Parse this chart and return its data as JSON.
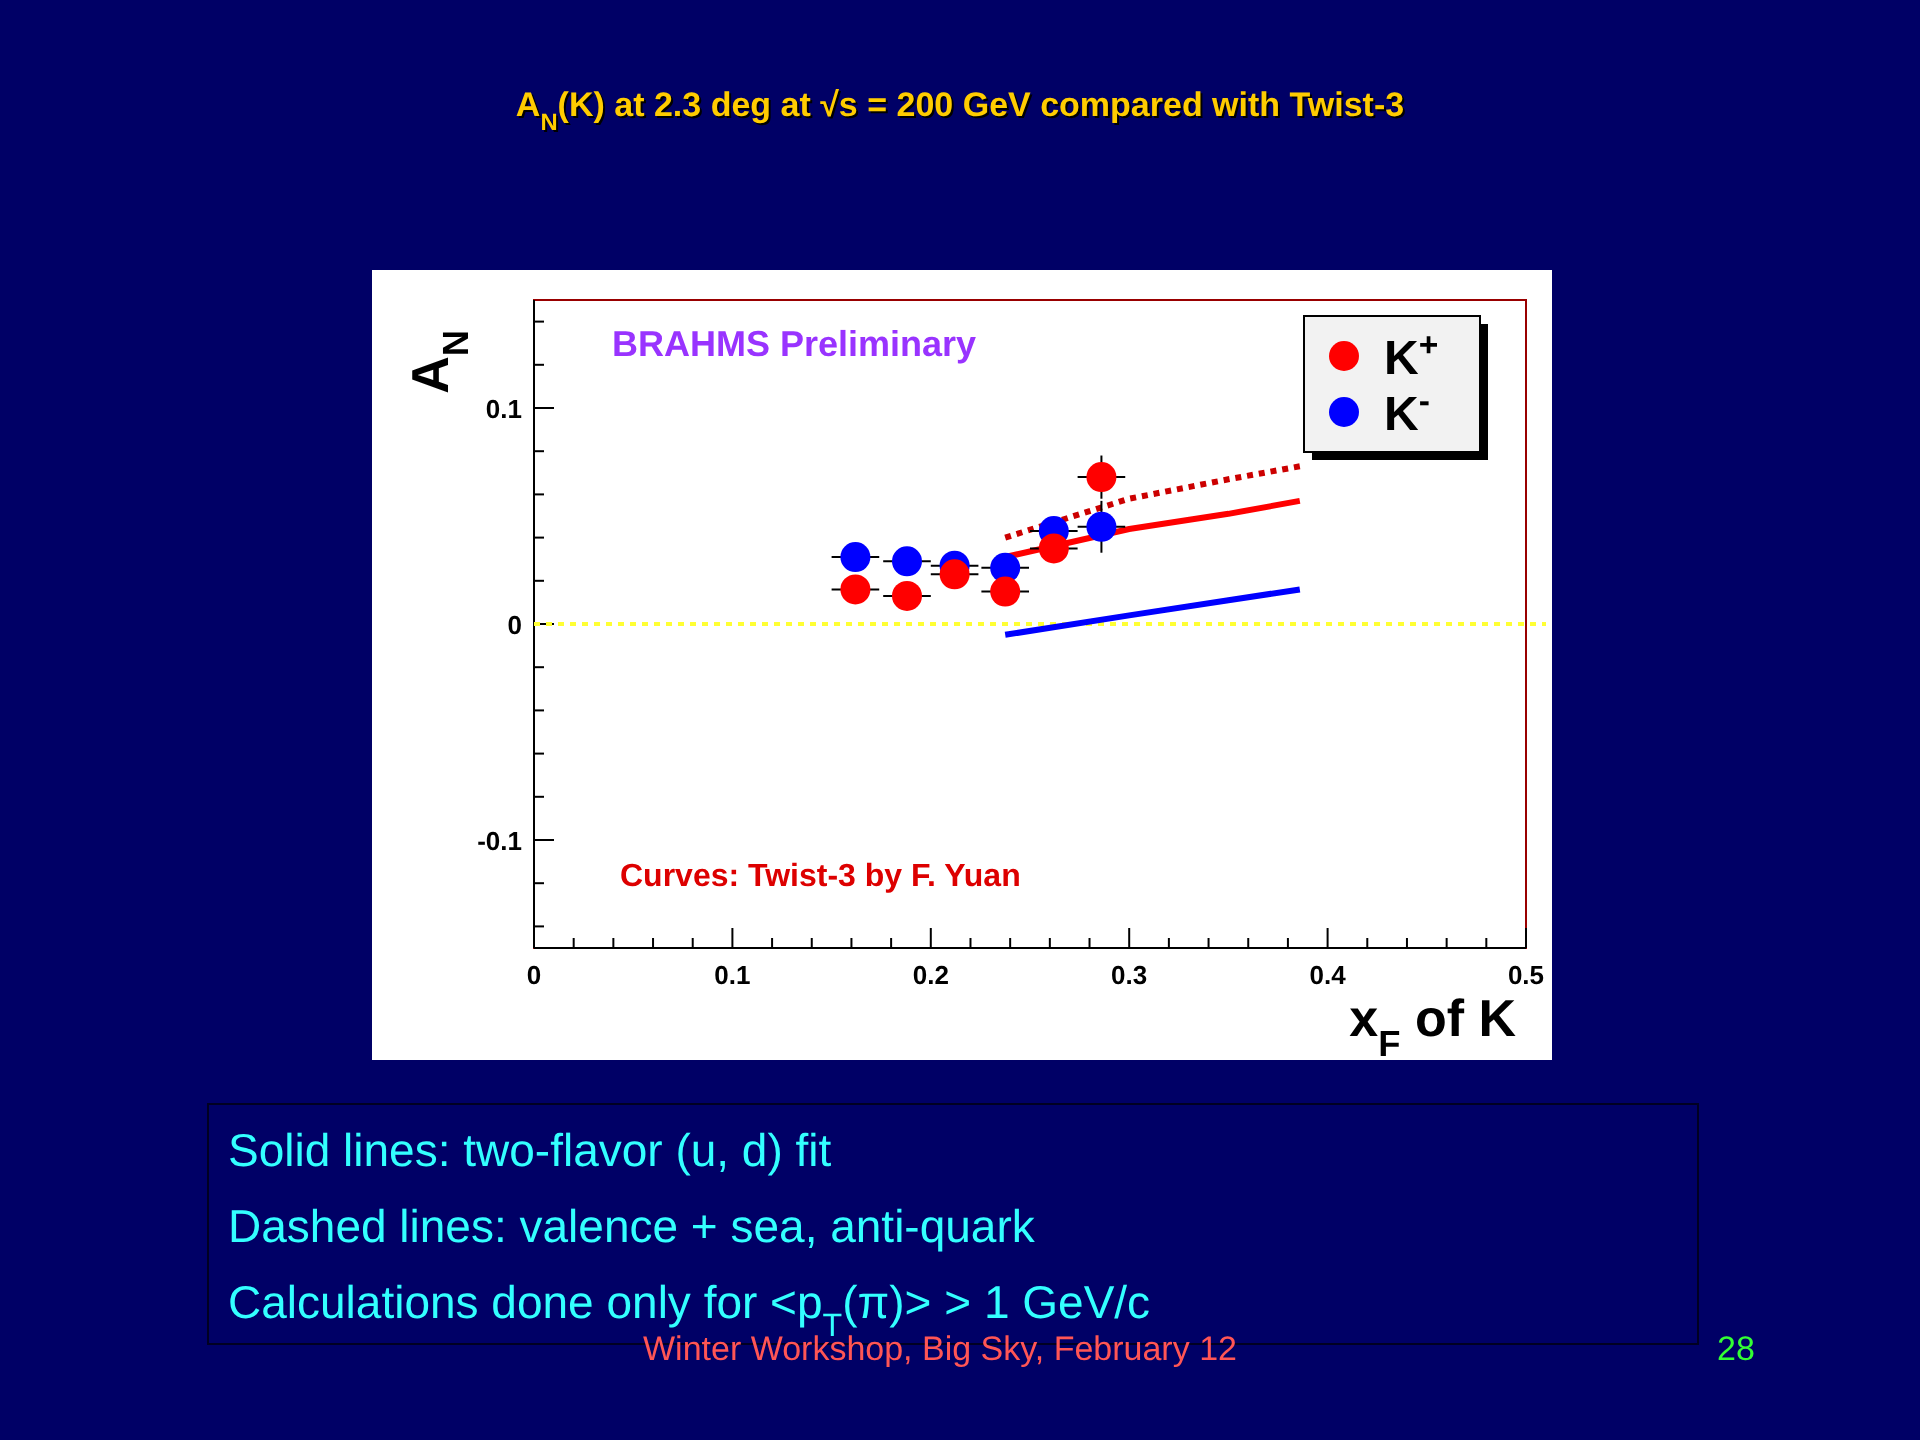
{
  "chart_data": {
    "type": "scatter",
    "title": "A$_{N}$(K) at 2.3 deg at √s = 200 GeV compared with Twist-3",
    "xlabel": "x$_{F}$ of K",
    "ylabel": "A$_{N}$",
    "xlim": [
      0,
      0.5
    ],
    "ylim": [
      -0.15,
      0.15
    ],
    "xticks": [
      0,
      {
        "value": 0.02,
        "label": null
      },
      {
        "value": 0.04,
        "label": null
      },
      {
        "value": 0.06,
        "label": null
      },
      {
        "value": 0.08,
        "label": null
      },
      0.1,
      {
        "value": 0.12,
        "label": null
      },
      {
        "value": 0.14,
        "label": null
      },
      {
        "value": 0.16,
        "label": null
      },
      {
        "value": 0.18,
        "label": null
      },
      0.2,
      {
        "value": 0.22,
        "label": null
      },
      {
        "value": 0.24,
        "label": null
      },
      {
        "value": 0.26,
        "label": null
      },
      {
        "value": 0.28,
        "label": null
      },
      0.3,
      {
        "value": 0.32,
        "label": null
      },
      {
        "value": 0.34,
        "label": null
      },
      {
        "value": 0.36,
        "label": null
      },
      {
        "value": 0.38,
        "label": null
      },
      0.4,
      {
        "value": 0.42,
        "label": null
      },
      {
        "value": 0.44,
        "label": null
      },
      {
        "value": 0.46,
        "label": null
      },
      {
        "value": 0.48,
        "label": null
      },
      0.5
    ],
    "yticks": [
      {
        "value": -0.14,
        "label": null
      },
      {
        "value": -0.12,
        "label": null
      },
      -0.1,
      {
        "value": -0.08,
        "label": null
      },
      {
        "value": -0.06,
        "label": null
      },
      {
        "value": -0.04,
        "label": null
      },
      {
        "value": -0.02,
        "label": null
      },
      0,
      {
        "value": 0.02,
        "label": null
      },
      {
        "value": 0.04,
        "label": null
      },
      {
        "value": 0.06,
        "label": null
      },
      {
        "value": 0.08,
        "label": null
      },
      0.1,
      {
        "value": 0.12,
        "label": null
      },
      {
        "value": 0.14,
        "label": null
      }
    ],
    "grid": false,
    "legend": "top right",
    "marker": "circle",
    "ref_lines": [
      {
        "axis": "y",
        "value": 0,
        "color": "#ffff33",
        "line_style": "dotted"
      }
    ],
    "series": [
      {
        "name": "K$^{+}$",
        "color": "#ff0000",
        "x": [
          0.162,
          0.188,
          0.212,
          0.2375,
          0.262,
          0.286
        ],
        "values": [
          0.016,
          0.013,
          0.023,
          0.015,
          0.035,
          0.068
        ],
        "errors": [
          null,
          null,
          null,
          null,
          null,
          0.01
        ],
        "xerrors": [
          0.012,
          0.012,
          0.012,
          0.012,
          0.012,
          0.012
        ]
      },
      {
        "name": "K$^{-}$",
        "color": "#0000ff",
        "x": [
          0.162,
          0.188,
          0.212,
          0.2375,
          0.262,
          0.286
        ],
        "values": [
          0.031,
          0.029,
          0.027,
          0.026,
          0.043,
          0.045
        ],
        "errors": [
          null,
          null,
          null,
          null,
          null,
          0.012
        ],
        "xerrors": [
          0.012,
          0.012,
          0.012,
          0.012,
          0.012,
          0.012
        ]
      },
      {
        "type": "line",
        "color": "#ff0000",
        "line_style": "solid",
        "marker": "none",
        "x": [
          0.2375,
          0.3,
          0.35,
          0.386
        ],
        "values": [
          0.031,
          0.044,
          0.051,
          0.057
        ]
      },
      {
        "type": "line",
        "color": "#cc0000",
        "line_style": "dotted",
        "marker": "none",
        "x": [
          0.2375,
          0.3,
          0.35,
          0.386
        ],
        "values": [
          0.04,
          0.058,
          0.067,
          0.073
        ]
      },
      {
        "type": "line",
        "color": "#0000ff",
        "line_style": "solid",
        "marker": "none",
        "x": [
          0.2375,
          0.3,
          0.35,
          0.386
        ],
        "values": [
          -0.005,
          0.004,
          0.011,
          0.016
        ]
      }
    ],
    "annotations": [
      "BRAHMS Preliminary",
      "Curves: Twist-3 by F. Yuan",
      "Solid lines: two-flavor (u, d) fit",
      "Dashed lines: valence + sea, anti-quark",
      "Calculations done only for <p$_{T}$(π)>  >  1 GeV/c",
      "Winter Workshop, Big Sky, February 12",
      "28"
    ]
  }
}
